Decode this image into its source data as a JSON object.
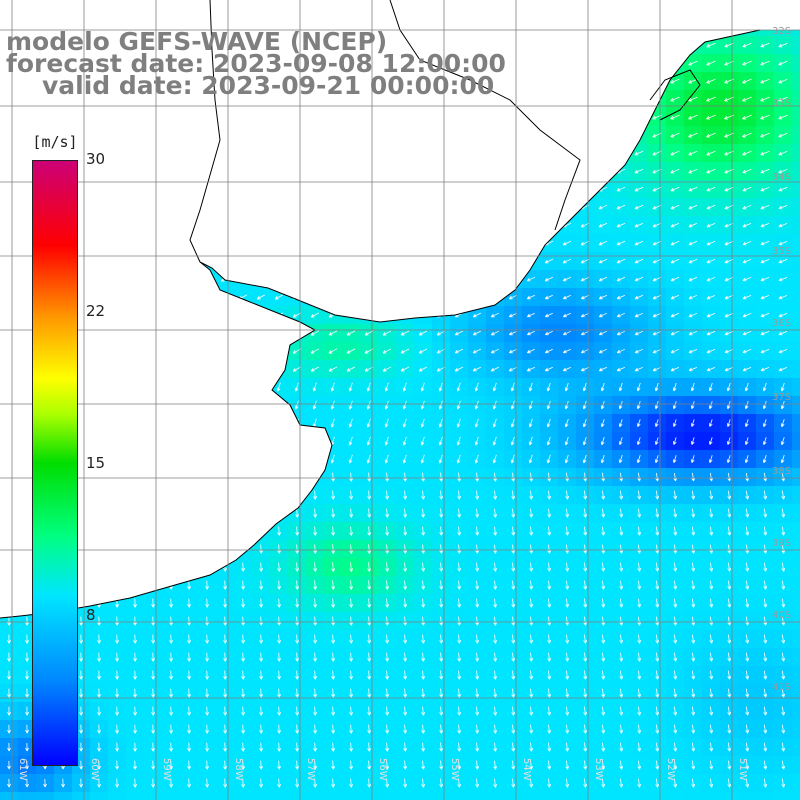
{
  "titles": {
    "model": "modelo GEFS-WAVE (NCEP)",
    "forecast": "forecast date: 2023-09-08 12:00:00",
    "valid": "valid date: 2023-09-21 00:00:00"
  },
  "colorbar": {
    "unit": "[m/s]",
    "ticks": [
      "30",
      "22",
      "15",
      "8"
    ],
    "range": [
      0,
      30
    ],
    "colors": [
      "#0000ff",
      "#0088ff",
      "#00e5ff",
      "#00ff80",
      "#00dd00",
      "#aaff00",
      "#ffff00",
      "#ff9900",
      "#ff0000",
      "#cc0077"
    ]
  },
  "map": {
    "lat_labels": [
      "32S",
      "33S",
      "34S",
      "35S",
      "36S",
      "37S",
      "38S",
      "39S",
      "40S",
      "41S"
    ],
    "lon_labels": [
      "61W",
      "60W",
      "59W",
      "58W",
      "57W",
      "56W",
      "55W",
      "54W",
      "53W",
      "52W",
      "51W"
    ],
    "land_color": "#ffffff",
    "coast_color": "#000000",
    "grid_color": "#7f7f7f",
    "arrow_color": "#ffffff"
  }
}
